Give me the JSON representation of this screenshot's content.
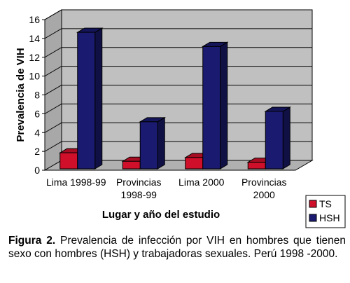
{
  "chart_data": {
    "type": "bar",
    "categories": [
      "Lima 1998-99",
      "Provincias 1998-99",
      "Lima 2000",
      "Provincias 2000"
    ],
    "series": [
      {
        "name": "TS",
        "color": "#d0102a",
        "values": [
          1.7,
          0.8,
          1.2,
          0.7
        ]
      },
      {
        "name": "HSH",
        "color": "#1a1a70",
        "values": [
          14.5,
          5.0,
          13.0,
          6.1
        ]
      }
    ],
    "xlabel": "Lugar y año del estudio",
    "ylabel": "Prevalencia de VIH",
    "ylim": [
      0,
      16
    ],
    "yticks": [
      0,
      2,
      4,
      6,
      8,
      10,
      12,
      14,
      16
    ],
    "grid": true,
    "legend_position": "bottom-right",
    "wall_color": "#c0c0c0"
  },
  "caption": {
    "label": "Figura 2.",
    "text": " Prevalencia de infección por VIH en hombres que tienen sexo con hombres (HSH) y trabajadoras sexuales. Perú 1998 -2000."
  }
}
